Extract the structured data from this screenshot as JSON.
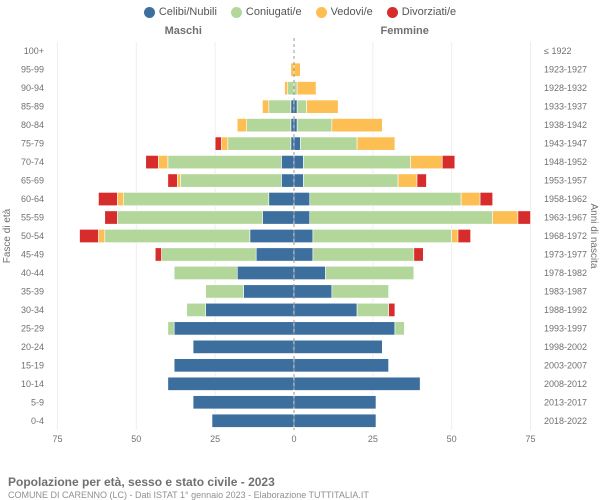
{
  "chart_type": "population-pyramid",
  "background_color": "#ffffff",
  "legend": {
    "items": [
      {
        "label": "Celibi/Nubili",
        "color": "#3c6e9e"
      },
      {
        "label": "Coniugati/e",
        "color": "#b3d69b"
      },
      {
        "label": "Vedovi/e",
        "color": "#fdbf53"
      },
      {
        "label": "Divorziati/e",
        "color": "#d62c2c"
      }
    ],
    "fontsize": 11,
    "text_color": "#555555"
  },
  "titles": {
    "left": "Maschi",
    "right": "Femmine",
    "fontsize": 11,
    "font_weight": "bold",
    "color": "#707070"
  },
  "axes": {
    "y_left_label": "Fasce di età",
    "y_right_label": "Anni di nascita",
    "label_fontsize": 10,
    "label_color": "#707070",
    "x_ticks": [
      75,
      50,
      25,
      0,
      25,
      50,
      75
    ],
    "x_max": 78,
    "tick_fontsize": 9,
    "tick_color": "#707070",
    "gridline_color": "#eeeeee",
    "center_line_color": "#999999",
    "center_line_dash": "3,3"
  },
  "plot": {
    "bar_height_ratio": 0.72,
    "row_gap": 0,
    "segment_stroke": "#ffffff",
    "segment_stroke_width": 0.6
  },
  "age_bands": [
    {
      "label": "100+",
      "birth": "≤ 1922",
      "male": {
        "cel": 0,
        "con": 0,
        "ved": 0,
        "div": 0
      },
      "female": {
        "cel": 0,
        "con": 0,
        "ved": 0,
        "div": 0
      }
    },
    {
      "label": "95-99",
      "birth": "1923-1927",
      "male": {
        "cel": 0,
        "con": 0,
        "ved": 1,
        "div": 0
      },
      "female": {
        "cel": 0,
        "con": 0,
        "ved": 2,
        "div": 0
      }
    },
    {
      "label": "90-94",
      "birth": "1928-1932",
      "male": {
        "cel": 0,
        "con": 2,
        "ved": 1,
        "div": 0
      },
      "female": {
        "cel": 0,
        "con": 1,
        "ved": 6,
        "div": 0
      }
    },
    {
      "label": "85-89",
      "birth": "1933-1937",
      "male": {
        "cel": 1,
        "con": 7,
        "ved": 2,
        "div": 0
      },
      "female": {
        "cel": 1,
        "con": 3,
        "ved": 10,
        "div": 0
      }
    },
    {
      "label": "80-84",
      "birth": "1938-1942",
      "male": {
        "cel": 1,
        "con": 14,
        "ved": 3,
        "div": 0
      },
      "female": {
        "cel": 1,
        "con": 11,
        "ved": 16,
        "div": 0
      }
    },
    {
      "label": "75-79",
      "birth": "1943-1947",
      "male": {
        "cel": 1,
        "con": 20,
        "ved": 2,
        "div": 2
      },
      "female": {
        "cel": 2,
        "con": 18,
        "ved": 12,
        "div": 0
      }
    },
    {
      "label": "70-74",
      "birth": "1948-1952",
      "male": {
        "cel": 4,
        "con": 36,
        "ved": 3,
        "div": 4
      },
      "female": {
        "cel": 3,
        "con": 34,
        "ved": 10,
        "div": 4
      }
    },
    {
      "label": "65-69",
      "birth": "1953-1957",
      "male": {
        "cel": 4,
        "con": 32,
        "ved": 1,
        "div": 3
      },
      "female": {
        "cel": 3,
        "con": 30,
        "ved": 6,
        "div": 3
      }
    },
    {
      "label": "60-64",
      "birth": "1958-1962",
      "male": {
        "cel": 8,
        "con": 46,
        "ved": 2,
        "div": 6
      },
      "female": {
        "cel": 5,
        "con": 48,
        "ved": 6,
        "div": 4
      }
    },
    {
      "label": "55-59",
      "birth": "1963-1967",
      "male": {
        "cel": 10,
        "con": 46,
        "ved": 0,
        "div": 4
      },
      "female": {
        "cel": 5,
        "con": 58,
        "ved": 8,
        "div": 4
      }
    },
    {
      "label": "50-54",
      "birth": "1968-1972",
      "male": {
        "cel": 14,
        "con": 46,
        "ved": 2,
        "div": 6
      },
      "female": {
        "cel": 6,
        "con": 44,
        "ved": 2,
        "div": 4
      }
    },
    {
      "label": "45-49",
      "birth": "1973-1977",
      "male": {
        "cel": 12,
        "con": 30,
        "ved": 0,
        "div": 2
      },
      "female": {
        "cel": 6,
        "con": 32,
        "ved": 0,
        "div": 3
      }
    },
    {
      "label": "40-44",
      "birth": "1978-1982",
      "male": {
        "cel": 18,
        "con": 20,
        "ved": 0,
        "div": 0
      },
      "female": {
        "cel": 10,
        "con": 28,
        "ved": 0,
        "div": 0
      }
    },
    {
      "label": "35-39",
      "birth": "1983-1987",
      "male": {
        "cel": 16,
        "con": 12,
        "ved": 0,
        "div": 0
      },
      "female": {
        "cel": 12,
        "con": 18,
        "ved": 0,
        "div": 0
      }
    },
    {
      "label": "30-34",
      "birth": "1988-1992",
      "male": {
        "cel": 28,
        "con": 6,
        "ved": 0,
        "div": 0
      },
      "female": {
        "cel": 20,
        "con": 10,
        "ved": 0,
        "div": 2
      }
    },
    {
      "label": "25-29",
      "birth": "1993-1997",
      "male": {
        "cel": 38,
        "con": 2,
        "ved": 0,
        "div": 0
      },
      "female": {
        "cel": 32,
        "con": 3,
        "ved": 0,
        "div": 0
      }
    },
    {
      "label": "20-24",
      "birth": "1998-2002",
      "male": {
        "cel": 32,
        "con": 0,
        "ved": 0,
        "div": 0
      },
      "female": {
        "cel": 28,
        "con": 0,
        "ved": 0,
        "div": 0
      }
    },
    {
      "label": "15-19",
      "birth": "2003-2007",
      "male": {
        "cel": 38,
        "con": 0,
        "ved": 0,
        "div": 0
      },
      "female": {
        "cel": 30,
        "con": 0,
        "ved": 0,
        "div": 0
      }
    },
    {
      "label": "10-14",
      "birth": "2008-2012",
      "male": {
        "cel": 40,
        "con": 0,
        "ved": 0,
        "div": 0
      },
      "female": {
        "cel": 40,
        "con": 0,
        "ved": 0,
        "div": 0
      }
    },
    {
      "label": "5-9",
      "birth": "2013-2017",
      "male": {
        "cel": 32,
        "con": 0,
        "ved": 0,
        "div": 0
      },
      "female": {
        "cel": 26,
        "con": 0,
        "ved": 0,
        "div": 0
      }
    },
    {
      "label": "0-4",
      "birth": "2018-2022",
      "male": {
        "cel": 26,
        "con": 0,
        "ved": 0,
        "div": 0
      },
      "female": {
        "cel": 26,
        "con": 0,
        "ved": 0,
        "div": 0
      }
    }
  ],
  "footer": {
    "title": "Popolazione per età, sesso e stato civile - 2023",
    "title_fontsize": 12,
    "title_color": "#707070",
    "subtitle": "COMUNE DI CARENNO (LC) - Dati ISTAT 1° gennaio 2023 - Elaborazione TUTTITALIA.IT",
    "subtitle_fontsize": 9,
    "subtitle_color": "#909090"
  }
}
